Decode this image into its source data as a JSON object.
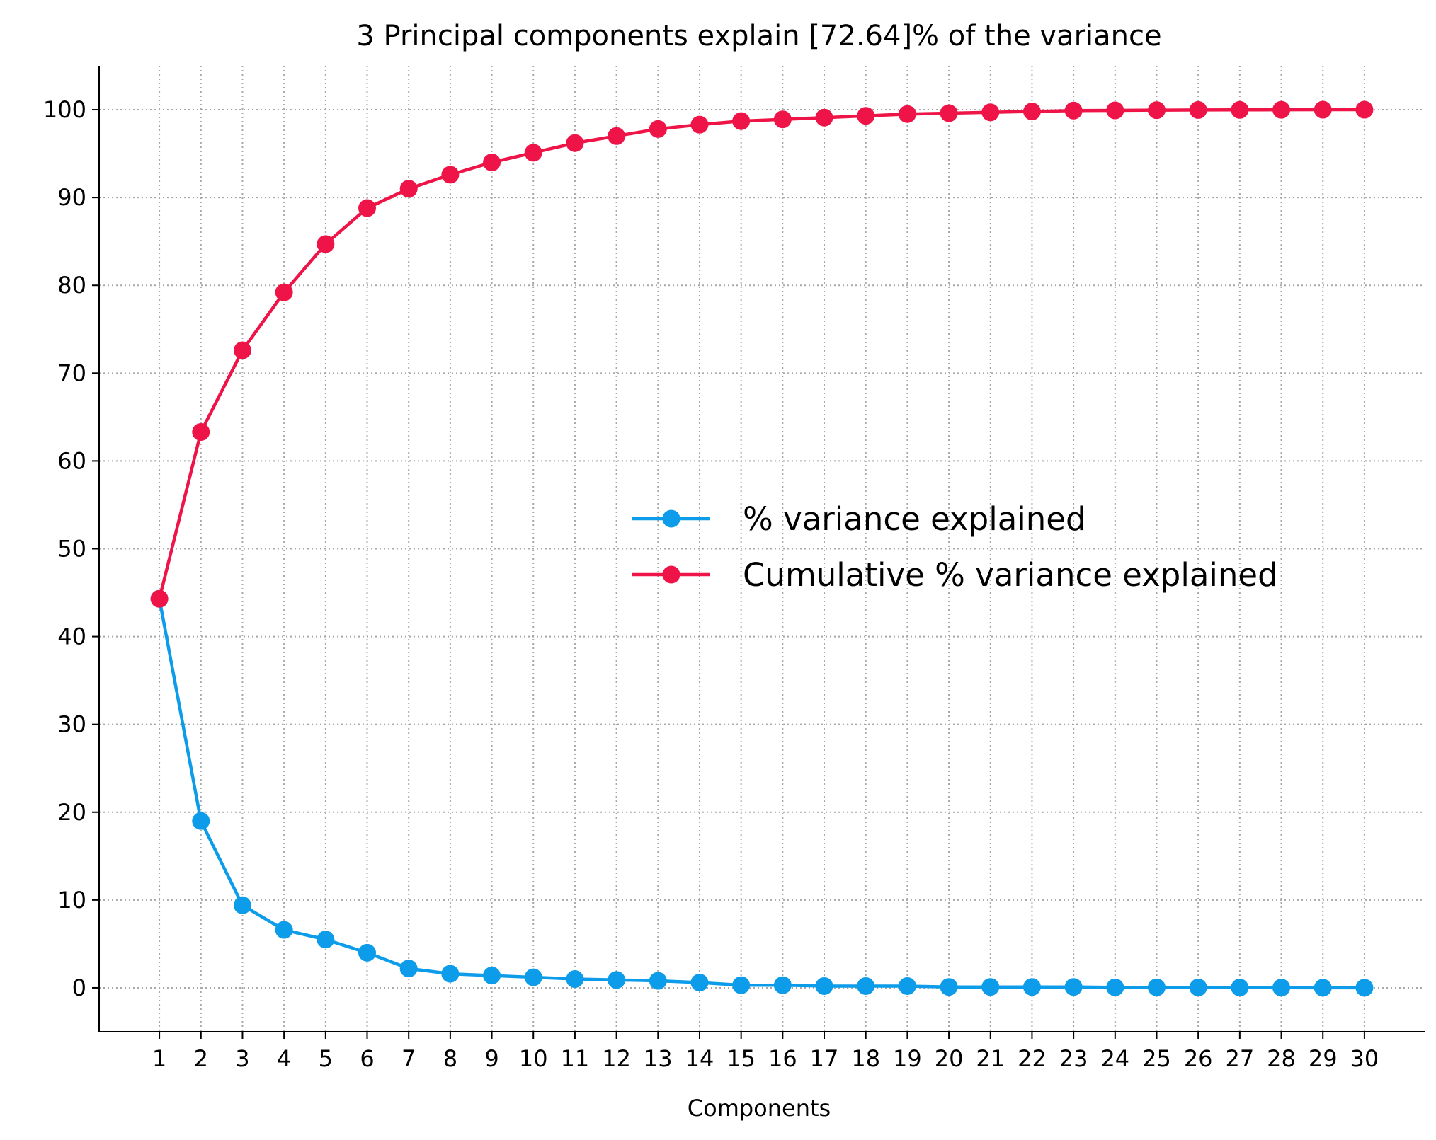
{
  "chart_data": {
    "type": "line",
    "title": "3 Principal components explain [72.64]% of the variance",
    "xlabel": "Components",
    "ylabel": "",
    "x": [
      1,
      2,
      3,
      4,
      5,
      6,
      7,
      8,
      9,
      10,
      11,
      12,
      13,
      14,
      15,
      16,
      17,
      18,
      19,
      20,
      21,
      22,
      23,
      24,
      25,
      26,
      27,
      28,
      29,
      30
    ],
    "xticks": [
      "1",
      "2",
      "3",
      "4",
      "5",
      "6",
      "7",
      "8",
      "9",
      "10",
      "11",
      "12",
      "13",
      "14",
      "15",
      "16",
      "17",
      "18",
      "19",
      "20",
      "21",
      "22",
      "23",
      "24",
      "25",
      "26",
      "27",
      "28",
      "29",
      "30"
    ],
    "yticks": [
      0,
      10,
      20,
      30,
      40,
      50,
      60,
      70,
      80,
      90,
      100
    ],
    "ylim": [
      -5,
      105
    ],
    "xlim": [
      -0.45,
      31.45
    ],
    "grid": true,
    "legend_position": "center-right",
    "series": [
      {
        "name": "% variance explained",
        "color": "#0c9ce9",
        "values": [
          44.3,
          19.0,
          9.4,
          6.6,
          5.5,
          4.0,
          2.2,
          1.6,
          1.4,
          1.2,
          1.0,
          0.9,
          0.8,
          0.6,
          0.3,
          0.3,
          0.2,
          0.2,
          0.2,
          0.1,
          0.1,
          0.1,
          0.1,
          0.05,
          0.05,
          0.04,
          0.03,
          0.02,
          0.01,
          0.01
        ]
      },
      {
        "name": "Cumulative % variance explained",
        "color": "#ef1447",
        "values": [
          44.3,
          63.3,
          72.6,
          79.2,
          84.7,
          88.8,
          91.0,
          92.6,
          94.0,
          95.1,
          96.2,
          97.0,
          97.8,
          98.3,
          98.7,
          98.9,
          99.1,
          99.3,
          99.5,
          99.6,
          99.7,
          99.8,
          99.9,
          99.92,
          99.95,
          99.97,
          99.98,
          99.99,
          100.0,
          100.0
        ]
      }
    ]
  }
}
